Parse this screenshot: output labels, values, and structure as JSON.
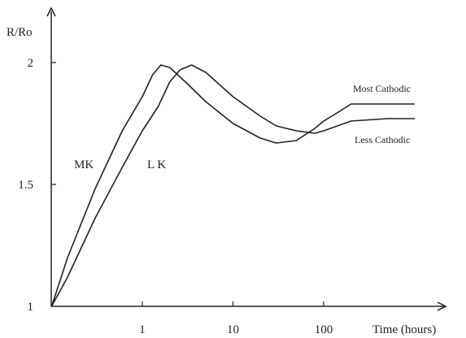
{
  "chart_data": {
    "type": "line",
    "ylabel": "R/Ro",
    "xlabel": "Time (hours)",
    "x_scale": "log",
    "xlim": [
      0.1,
      1000
    ],
    "ylim": [
      1,
      2.1
    ],
    "x_ticks": [
      1,
      10,
      100
    ],
    "x_tick_labels": [
      "1",
      "10",
      "100"
    ],
    "y_ticks": [
      1,
      1.5,
      2
    ],
    "y_tick_labels": [
      "1",
      "1.5",
      "2"
    ],
    "series": [
      {
        "name": "Most Cathodic",
        "curve_label": "MK",
        "color": "#222222",
        "x": [
          0.1,
          0.15,
          0.3,
          0.6,
          1,
          1.3,
          1.6,
          2,
          3,
          5,
          10,
          20,
          30,
          50,
          80,
          100,
          150,
          200,
          500,
          1000
        ],
        "y": [
          1.0,
          1.2,
          1.48,
          1.72,
          1.86,
          1.95,
          1.99,
          1.98,
          1.92,
          1.84,
          1.75,
          1.69,
          1.67,
          1.68,
          1.73,
          1.76,
          1.8,
          1.83,
          1.83,
          1.83
        ]
      },
      {
        "name": "Less Cathodic",
        "curve_label": "L K",
        "color": "#222222",
        "x": [
          0.1,
          0.15,
          0.3,
          0.6,
          1,
          1.5,
          2,
          2.6,
          3.5,
          5,
          10,
          20,
          30,
          50,
          80,
          100,
          200,
          500,
          1000
        ],
        "y": [
          1.0,
          1.12,
          1.36,
          1.57,
          1.72,
          1.82,
          1.92,
          1.97,
          1.99,
          1.96,
          1.86,
          1.78,
          1.74,
          1.72,
          1.71,
          1.72,
          1.76,
          1.77,
          1.77
        ]
      }
    ]
  }
}
